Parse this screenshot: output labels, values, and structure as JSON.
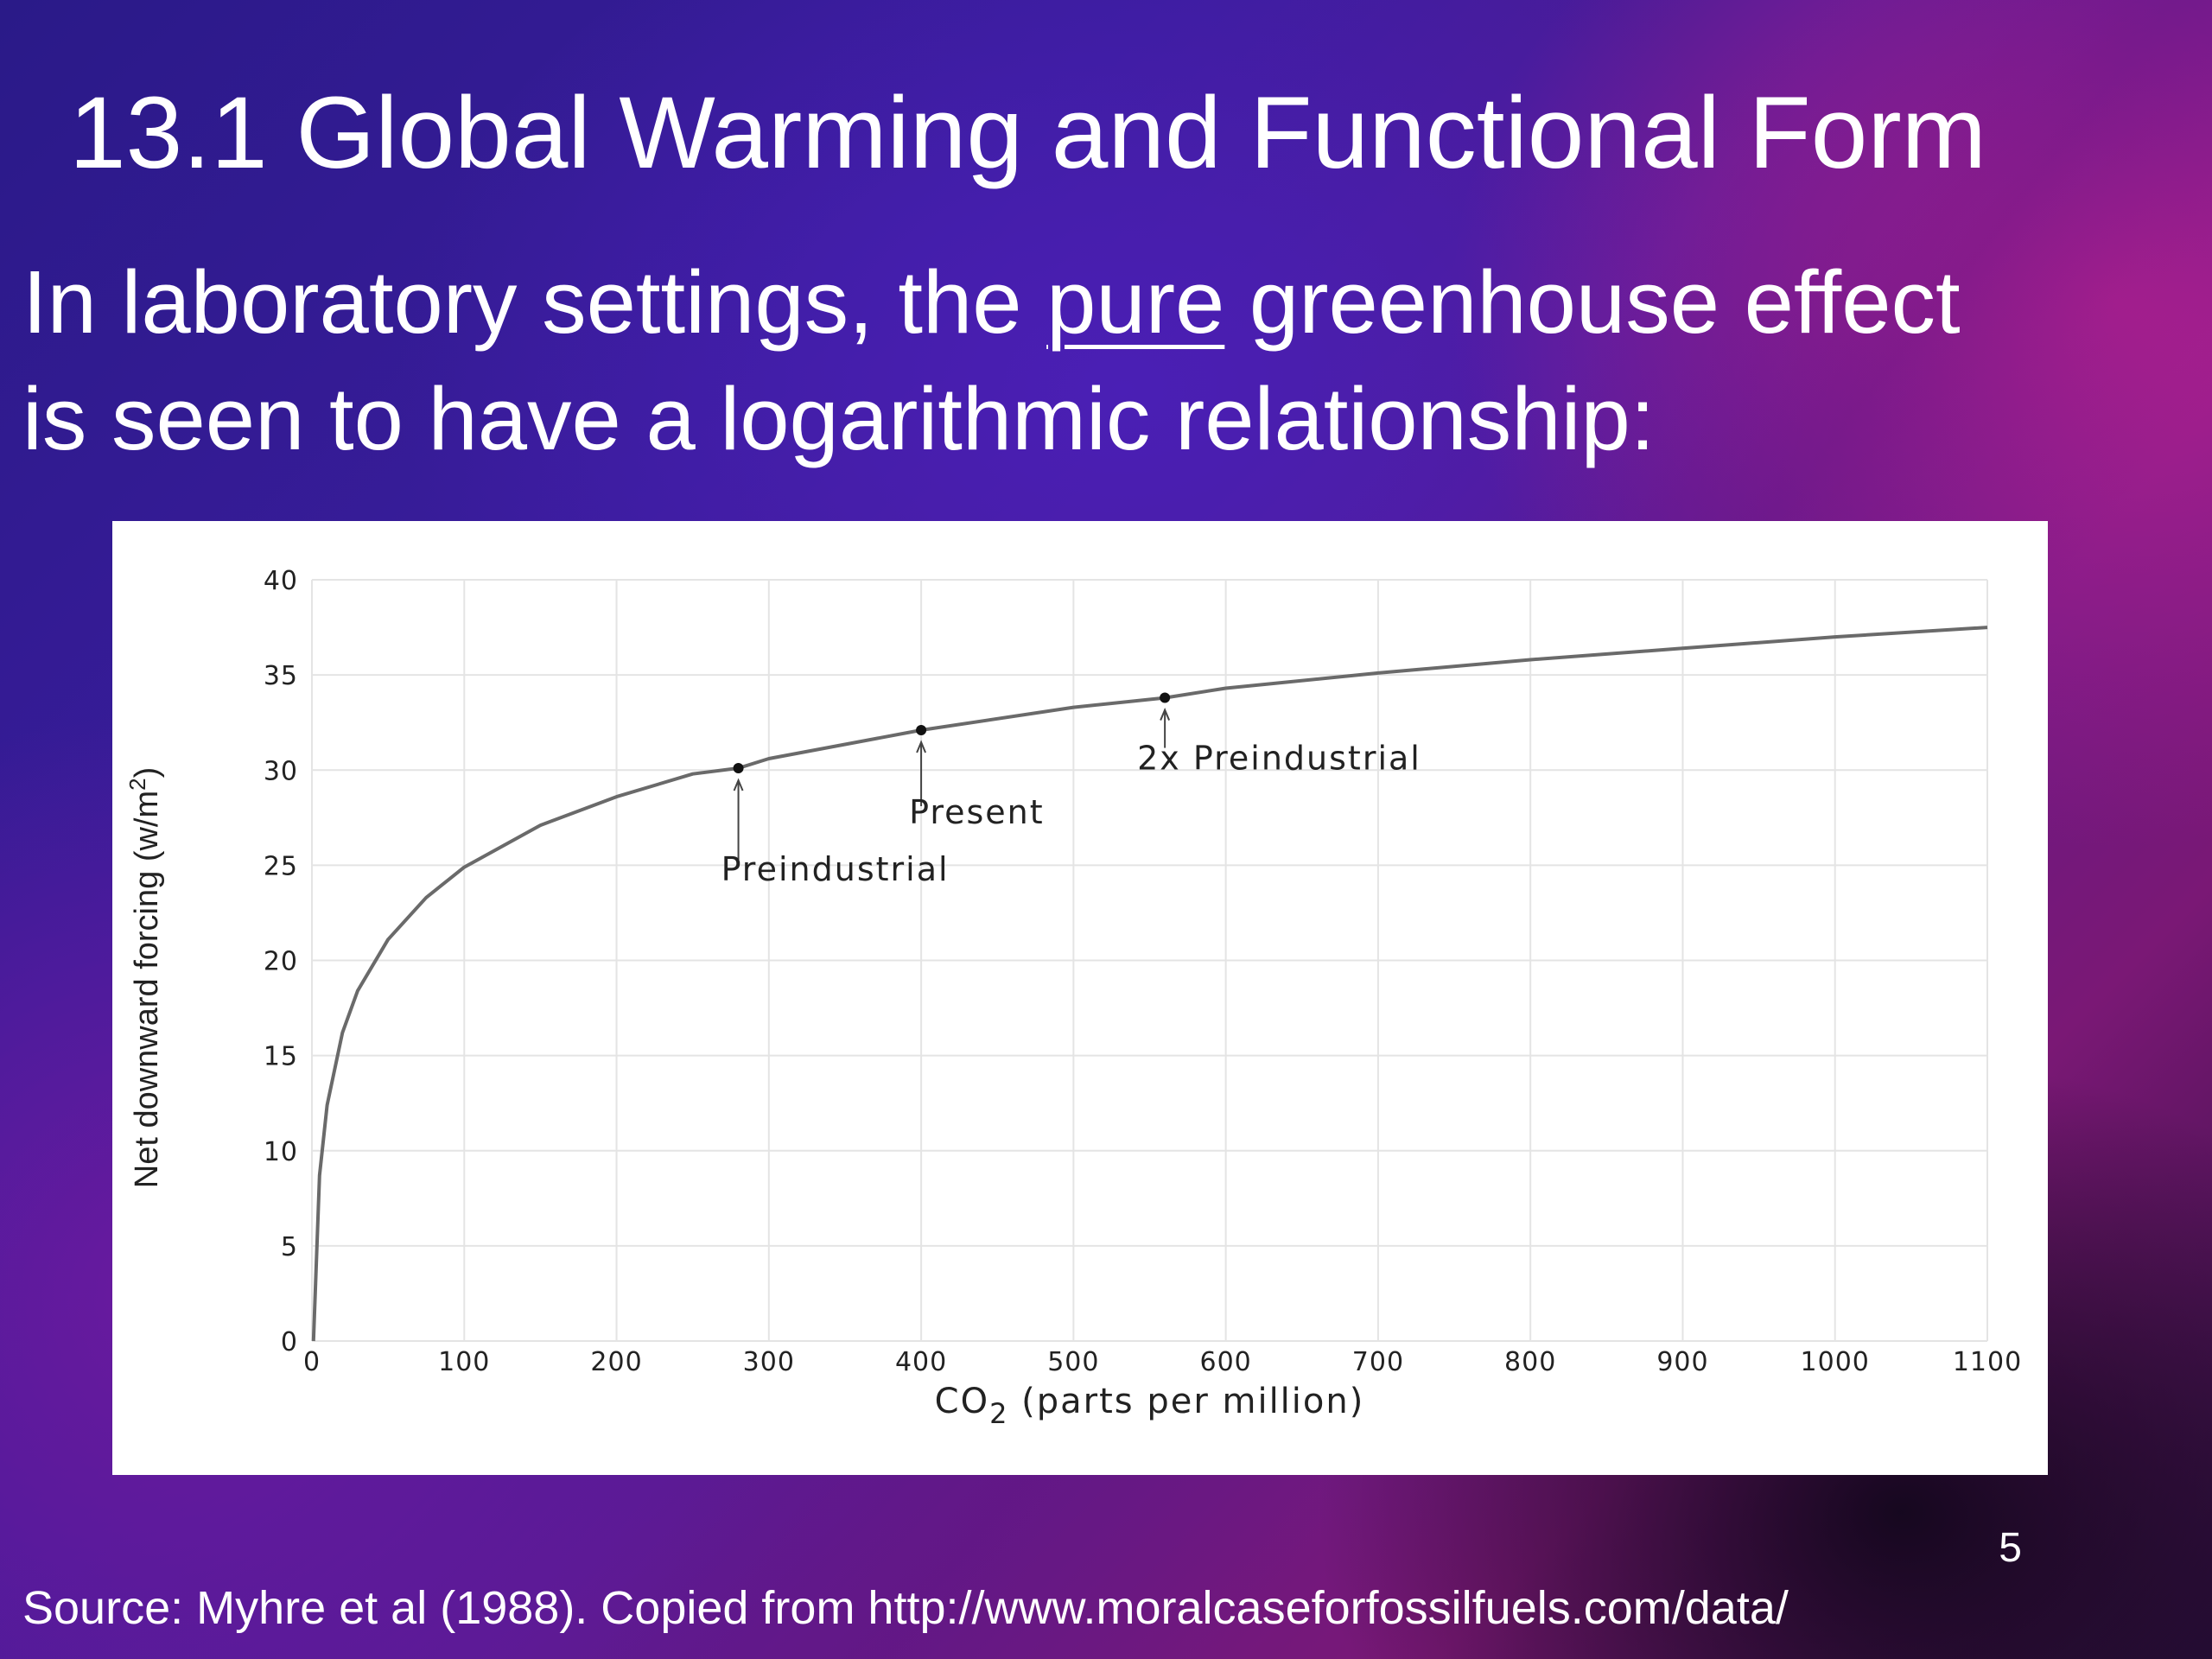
{
  "slide": {
    "title": "13.1 Global Warming and Functional Form",
    "body_prefix": "In laboratory settings, the ",
    "body_underlined": "pure",
    "body_suffix": " greenhouse effect",
    "body_line2": "is seen to have a logarithmic relationship:",
    "page_number": "5",
    "source": "Source: Myhre et al (1988).  Copied from http://www.moralcaseforfossilfuels.com/data/"
  },
  "chart_data": {
    "type": "line",
    "title": "",
    "xlabel_main": "CO",
    "xlabel_sub": "2",
    "xlabel_rest": " (parts per million)",
    "ylabel_main": "Net downward forcing (w/m",
    "ylabel_sup": "2",
    "ylabel_end": ")",
    "xlim": [
      0,
      1100
    ],
    "ylim": [
      0,
      40
    ],
    "x_ticks": [
      0,
      100,
      200,
      300,
      400,
      500,
      600,
      700,
      800,
      900,
      1000,
      1100
    ],
    "y_ticks": [
      0,
      5,
      10,
      15,
      20,
      25,
      30,
      35,
      40
    ],
    "grid": true,
    "series": [
      {
        "x": [
          1,
          5,
          10,
          20,
          30,
          50,
          75,
          100,
          150,
          200,
          250,
          280,
          300,
          400,
          500,
          560,
          600,
          700,
          800,
          900,
          1000,
          1100
        ],
        "y": [
          0,
          8.7,
          12.4,
          16.2,
          18.4,
          21.1,
          23.3,
          24.9,
          27.1,
          28.6,
          29.8,
          30.1,
          30.6,
          32.1,
          33.3,
          33.8,
          34.3,
          35.1,
          35.8,
          36.4,
          37.0,
          37.5
        ]
      }
    ],
    "annotations": [
      {
        "label": "Preindustrial",
        "x": 280,
        "y": 30.1
      },
      {
        "label": "Present",
        "x": 400,
        "y": 32.1
      },
      {
        "label": "2x Preindustrial",
        "x": 560,
        "y": 33.8
      }
    ]
  }
}
